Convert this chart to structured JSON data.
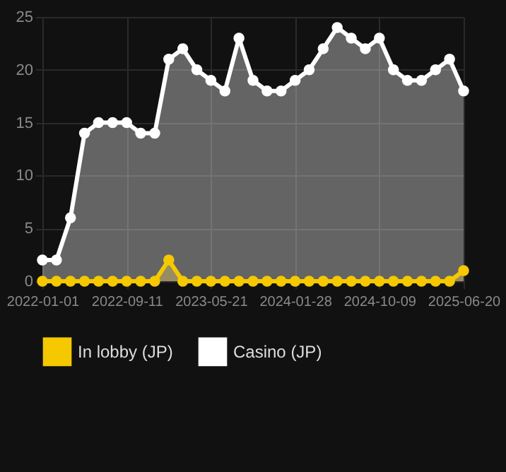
{
  "chart_data": {
    "type": "area",
    "categories": [
      "2022-01-01",
      null,
      null,
      null,
      null,
      null,
      "2022-09-11",
      null,
      null,
      null,
      null,
      null,
      "2023-05-21",
      null,
      null,
      null,
      null,
      null,
      "2024-01-28",
      null,
      null,
      null,
      null,
      null,
      "2024-10-09",
      null,
      null,
      null,
      null,
      null,
      "2025-06-20"
    ],
    "series": [
      {
        "name": "In lobby (JP)",
        "color": "#f5c800",
        "values": [
          0,
          0,
          0,
          0,
          0,
          0,
          0,
          0,
          0,
          2,
          0,
          0,
          0,
          0,
          0,
          0,
          0,
          0,
          0,
          0,
          0,
          0,
          0,
          0,
          0,
          0,
          0,
          0,
          0,
          0,
          1
        ]
      },
      {
        "name": "Casino (JP)",
        "color": "#ffffff",
        "values": [
          2,
          2,
          6,
          14,
          15,
          15,
          15,
          14,
          14,
          21,
          22,
          20,
          19,
          18,
          23,
          19,
          18,
          18,
          19,
          20,
          22,
          24,
          23,
          22,
          23,
          20,
          19,
          19,
          20,
          21,
          18
        ]
      }
    ],
    "ylim": [
      0,
      25
    ],
    "yticks": [
      0,
      5,
      10,
      15,
      20,
      25
    ],
    "grid": true,
    "legend": "bottom",
    "marker": "circle"
  }
}
